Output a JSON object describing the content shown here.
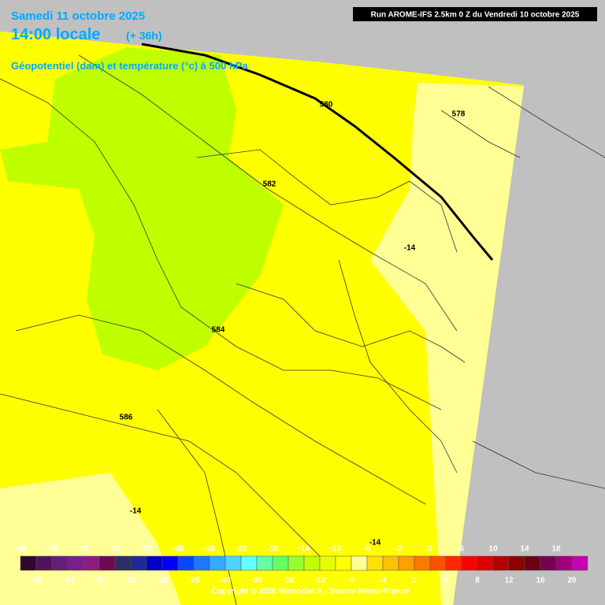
{
  "header": {
    "date": "Samedi 11 octobre 2025",
    "time": "14:00 locale",
    "lead": "(+ 36h)",
    "parameter": "Géopotentiel (dam) et température (°c) à 500 hPa",
    "run": "Run AROME-IFS 2.5km 0 Z du Vendredi 10 octobre 2025"
  },
  "contours": {
    "geopotential": [
      "580",
      "578",
      "582",
      "584",
      "586"
    ],
    "temperature": [
      "-14",
      "-14",
      "-14"
    ]
  },
  "legend": {
    "values": [
      -50,
      -48,
      -46,
      -44,
      -42,
      -40,
      -38,
      -36,
      -34,
      -32,
      -30,
      -28,
      -26,
      -24,
      -22,
      -20,
      -18,
      -16,
      -14,
      -12,
      -10,
      -8,
      -6,
      -4,
      -2,
      0,
      2,
      4,
      6,
      8,
      10,
      12,
      14,
      16,
      18,
      20
    ],
    "colors": [
      "#2d0a2d",
      "#50145a",
      "#641e78",
      "#7a1e8c",
      "#8c1e82",
      "#6e0a50",
      "#2d2d64",
      "#1e2896",
      "#0000c8",
      "#0000ff",
      "#0a46ff",
      "#1e78ff",
      "#32aaff",
      "#50d2ff",
      "#64ffff",
      "#64ffaa",
      "#64ff64",
      "#96ff32",
      "#bfff00",
      "#e6ff00",
      "#ffff00",
      "#ffff96",
      "#ffe000",
      "#ffc000",
      "#ffa000",
      "#ff7800",
      "#ff5000",
      "#ff2800",
      "#ff0000",
      "#dc0000",
      "#b40000",
      "#8c0000",
      "#6e0014",
      "#780050",
      "#a00078",
      "#c800b4",
      "#f000f0",
      "#ff78ff"
    ]
  },
  "copyright": "Copyright © 2025 Meteociel.fr - Source Meteo-France"
}
